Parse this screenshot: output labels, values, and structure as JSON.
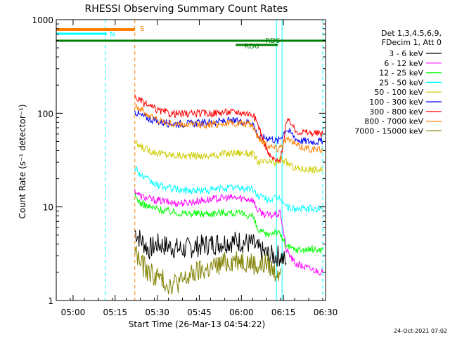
{
  "chart_data": {
    "type": "line",
    "title": "RHESSI Observing Summary Count Rates",
    "xlabel": "Start Time (26-Mar-13 04:54:22)",
    "ylabel": "Count Rate (s⁻¹ detector⁻¹)",
    "y_scale": "log",
    "ylim": [
      1,
      1000
    ],
    "y_ticks": [
      {
        "value": 1,
        "label": "1"
      },
      {
        "value": 10,
        "label": "10"
      },
      {
        "value": 100,
        "label": "100"
      },
      {
        "value": 1000,
        "label": "1000"
      }
    ],
    "x_range_minutes": [
      0,
      96
    ],
    "x_ticks": [
      {
        "minute": 6,
        "label": "05:00"
      },
      {
        "minute": 21,
        "label": "05:15"
      },
      {
        "minute": 36,
        "label": "05:30"
      },
      {
        "minute": 51,
        "label": "05:45"
      },
      {
        "minute": 66,
        "label": "06:00"
      },
      {
        "minute": 81,
        "label": "06:15"
      },
      {
        "minute": 96,
        "label": "06:30"
      }
    ],
    "legend_title": [
      "Det 1,3,4,5,6,9,",
      "FDecim 1, Att 0"
    ],
    "legend_position": "right",
    "series": [
      {
        "name": "3 - 6 keV",
        "color": "#000000",
        "points": [
          [
            28,
            5.5
          ],
          [
            30,
            4.5
          ],
          [
            33,
            3.5
          ],
          [
            36,
            4.0
          ],
          [
            40,
            3.8
          ],
          [
            45,
            3.5
          ],
          [
            50,
            3.8
          ],
          [
            55,
            4.0
          ],
          [
            60,
            4.2
          ],
          [
            65,
            4.3
          ],
          [
            70,
            4.0
          ],
          [
            72,
            3.5
          ],
          [
            76,
            3.0
          ],
          [
            80,
            3.0
          ],
          [
            82,
            2.5
          ]
        ]
      },
      {
        "name": "6 - 12 keV",
        "color": "#ff00ff",
        "points": [
          [
            28,
            15
          ],
          [
            30,
            13
          ],
          [
            34,
            12
          ],
          [
            38,
            11.5
          ],
          [
            42,
            11
          ],
          [
            46,
            11
          ],
          [
            50,
            11.5
          ],
          [
            55,
            12
          ],
          [
            60,
            12.5
          ],
          [
            65,
            12.5
          ],
          [
            70,
            12
          ],
          [
            72,
            9
          ],
          [
            76,
            8
          ],
          [
            80,
            8.5
          ],
          [
            82,
            3.5
          ],
          [
            85,
            2.5
          ],
          [
            90,
            2.2
          ],
          [
            95,
            2.0
          ]
        ]
      },
      {
        "name": "12 - 25 keV",
        "color": "#00ff00",
        "points": [
          [
            28,
            13
          ],
          [
            30,
            11
          ],
          [
            33,
            10
          ],
          [
            36,
            9.5
          ],
          [
            40,
            9
          ],
          [
            45,
            8.5
          ],
          [
            50,
            8.5
          ],
          [
            55,
            8.5
          ],
          [
            60,
            8.8
          ],
          [
            65,
            8.5
          ],
          [
            70,
            8.0
          ],
          [
            72,
            5.5
          ],
          [
            75,
            5.0
          ],
          [
            78,
            5.5
          ],
          [
            80,
            5.0
          ],
          [
            82,
            3.8
          ],
          [
            85,
            3.5
          ],
          [
            90,
            3.5
          ],
          [
            95,
            3.5
          ]
        ]
      },
      {
        "name": "25 - 50 keV",
        "color": "#00ffff",
        "points": [
          [
            28,
            27
          ],
          [
            30,
            22
          ],
          [
            33,
            19
          ],
          [
            36,
            17
          ],
          [
            40,
            16
          ],
          [
            45,
            15
          ],
          [
            50,
            15
          ],
          [
            55,
            15
          ],
          [
            60,
            16
          ],
          [
            65,
            16
          ],
          [
            70,
            15.5
          ],
          [
            72,
            13
          ],
          [
            76,
            12
          ],
          [
            80,
            12.5
          ],
          [
            82,
            10
          ],
          [
            85,
            9.5
          ],
          [
            90,
            9.5
          ],
          [
            95,
            9.5
          ]
        ]
      },
      {
        "name": "50 - 100 keV",
        "color": "#cccc00",
        "points": [
          [
            28,
            48
          ],
          [
            30,
            44
          ],
          [
            33,
            40
          ],
          [
            36,
            38
          ],
          [
            40,
            36
          ],
          [
            45,
            35
          ],
          [
            50,
            35
          ],
          [
            55,
            35
          ],
          [
            60,
            37
          ],
          [
            65,
            38
          ],
          [
            70,
            37
          ],
          [
            72,
            30
          ],
          [
            76,
            30
          ],
          [
            79,
            29
          ],
          [
            80,
            33
          ],
          [
            82,
            30
          ],
          [
            85,
            26
          ],
          [
            90,
            25
          ],
          [
            95,
            25
          ]
        ]
      },
      {
        "name": "100 - 300 keV",
        "color": "#0000ff",
        "points": [
          [
            28,
            105
          ],
          [
            30,
            95
          ],
          [
            33,
            88
          ],
          [
            36,
            82
          ],
          [
            40,
            78
          ],
          [
            45,
            77
          ],
          [
            50,
            78
          ],
          [
            55,
            80
          ],
          [
            60,
            82
          ],
          [
            65,
            82
          ],
          [
            70,
            80
          ],
          [
            72,
            55
          ],
          [
            76,
            55
          ],
          [
            79,
            50
          ],
          [
            80,
            55
          ],
          [
            82,
            68
          ],
          [
            84,
            60
          ],
          [
            86,
            52
          ],
          [
            90,
            50
          ],
          [
            95,
            50
          ]
        ]
      },
      {
        "name": "300 - 800 keV",
        "color": "#ff0000",
        "points": [
          [
            28,
            150
          ],
          [
            30,
            135
          ],
          [
            33,
            120
          ],
          [
            36,
            108
          ],
          [
            40,
            100
          ],
          [
            45,
            98
          ],
          [
            50,
            100
          ],
          [
            55,
            100
          ],
          [
            60,
            103
          ],
          [
            65,
            103
          ],
          [
            70,
            98
          ],
          [
            72,
            75
          ],
          [
            74,
            50
          ],
          [
            76,
            35
          ],
          [
            79,
            30
          ],
          [
            80,
            33
          ],
          [
            82,
            80
          ],
          [
            84,
            80
          ],
          [
            85,
            65
          ],
          [
            90,
            62
          ],
          [
            95,
            60
          ]
        ]
      },
      {
        "name": "800 - 7000 keV",
        "color": "#ff8000",
        "points": [
          [
            28,
            125
          ],
          [
            30,
            110
          ],
          [
            33,
            95
          ],
          [
            36,
            85
          ],
          [
            40,
            78
          ],
          [
            45,
            75
          ],
          [
            50,
            75
          ],
          [
            55,
            76
          ],
          [
            60,
            78
          ],
          [
            65,
            78
          ],
          [
            70,
            75
          ],
          [
            72,
            55
          ],
          [
            76,
            45
          ],
          [
            79,
            42
          ],
          [
            80,
            45
          ],
          [
            82,
            52
          ],
          [
            84,
            50
          ],
          [
            86,
            45
          ],
          [
            90,
            42
          ],
          [
            95,
            40
          ]
        ]
      },
      {
        "name": "7000 - 15000 keV",
        "color": "#808000",
        "points": [
          [
            28,
            3.5
          ],
          [
            30,
            2.5
          ],
          [
            33,
            2.0
          ],
          [
            36,
            1.8
          ],
          [
            40,
            1.5
          ],
          [
            45,
            1.6
          ],
          [
            50,
            2.0
          ],
          [
            55,
            2.2
          ],
          [
            60,
            2.5
          ],
          [
            65,
            2.8
          ],
          [
            70,
            2.5
          ],
          [
            72,
            2.3
          ],
          [
            75,
            2.5
          ],
          [
            78,
            2.0
          ],
          [
            80,
            2.2
          ]
        ]
      }
    ],
    "annotations": [
      {
        "text": "S",
        "color": "#ff8000",
        "bar_minutes": [
          0,
          28
        ]
      },
      {
        "text": "N",
        "color": "#00ffff",
        "bar_minutes": [
          0,
          18
        ]
      },
      {
        "text": "RD6",
        "color": "#008000",
        "bar_minutes": [
          0,
          96
        ]
      },
      {
        "text": "RD6",
        "color": "#008000",
        "bar_minutes": [
          64,
          79
        ]
      }
    ],
    "vlines": [
      {
        "minute": 17.5,
        "color": "#00ffff",
        "style": "dashed"
      },
      {
        "minute": 28,
        "color": "#ff8000",
        "style": "dashed"
      },
      {
        "minute": 78.5,
        "color": "#00ffff",
        "style": "solid"
      },
      {
        "minute": 80.5,
        "color": "#00ffff",
        "style": "solid"
      },
      {
        "minute": 95,
        "color": "#00ffff",
        "style": "dashed"
      }
    ],
    "grid": false
  },
  "footer": {
    "timestamp": "24-Oct-2021 07:02"
  }
}
